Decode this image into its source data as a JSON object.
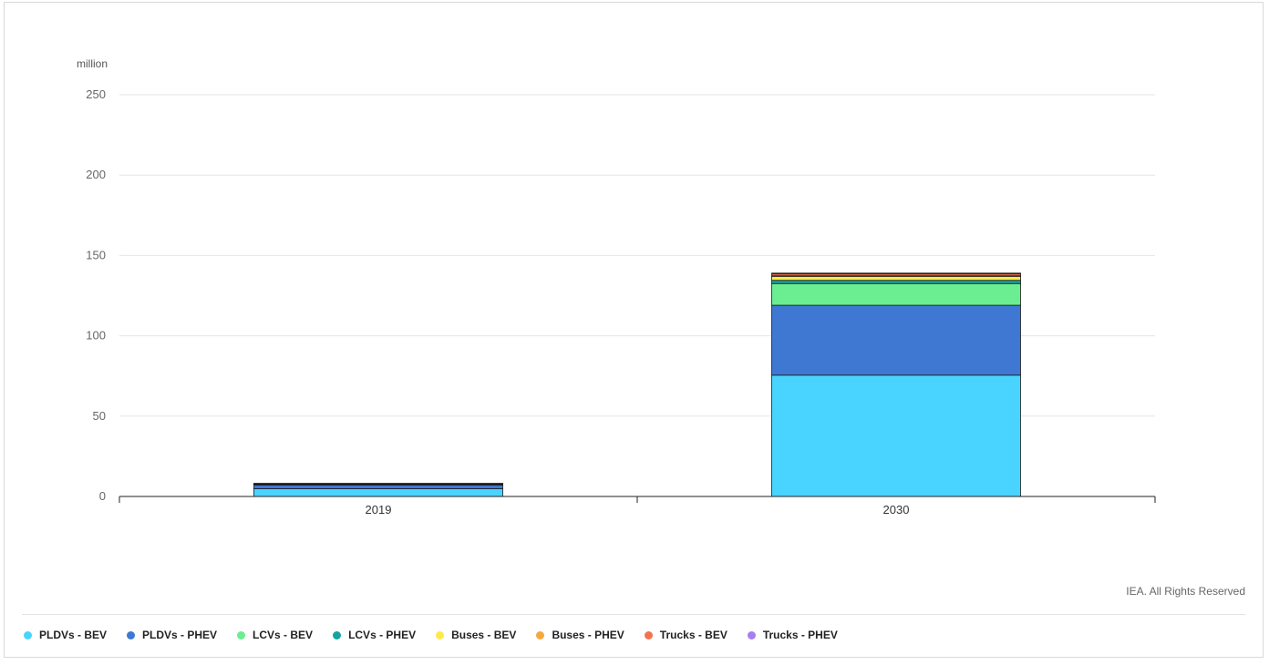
{
  "chart_data": {
    "type": "bar",
    "stacked": true,
    "categories": [
      "2019",
      "2030"
    ],
    "ylabel": "million",
    "ylim": [
      0,
      250
    ],
    "yticks": [
      0,
      50,
      100,
      150,
      200,
      250
    ],
    "grid": true,
    "legend_position": "bottom-left",
    "series": [
      {
        "name": "PLDVs - BEV",
        "color": "#49d4ff",
        "values": [
          4.8,
          75.5
        ]
      },
      {
        "name": "PLDVs - PHEV",
        "color": "#3e78d3",
        "values": [
          2.4,
          43.5
        ]
      },
      {
        "name": "LCVs - BEV",
        "color": "#6aee91",
        "values": [
          0.3,
          13.5
        ]
      },
      {
        "name": "LCVs - PHEV",
        "color": "#14a3a0",
        "values": [
          0.05,
          2.0
        ]
      },
      {
        "name": "Buses - BEV",
        "color": "#ffe94a",
        "values": [
          0.5,
          2.5
        ]
      },
      {
        "name": "Buses - PHEV",
        "color": "#f7a83b",
        "values": [
          0.05,
          0.3
        ]
      },
      {
        "name": "Trucks - BEV",
        "color": "#f2734f",
        "values": [
          0.01,
          1.2
        ]
      },
      {
        "name": "Trucks - PHEV",
        "color": "#a77ef0",
        "values": [
          0.0,
          0.5
        ]
      }
    ]
  },
  "credit": "IEA. All Rights Reserved"
}
